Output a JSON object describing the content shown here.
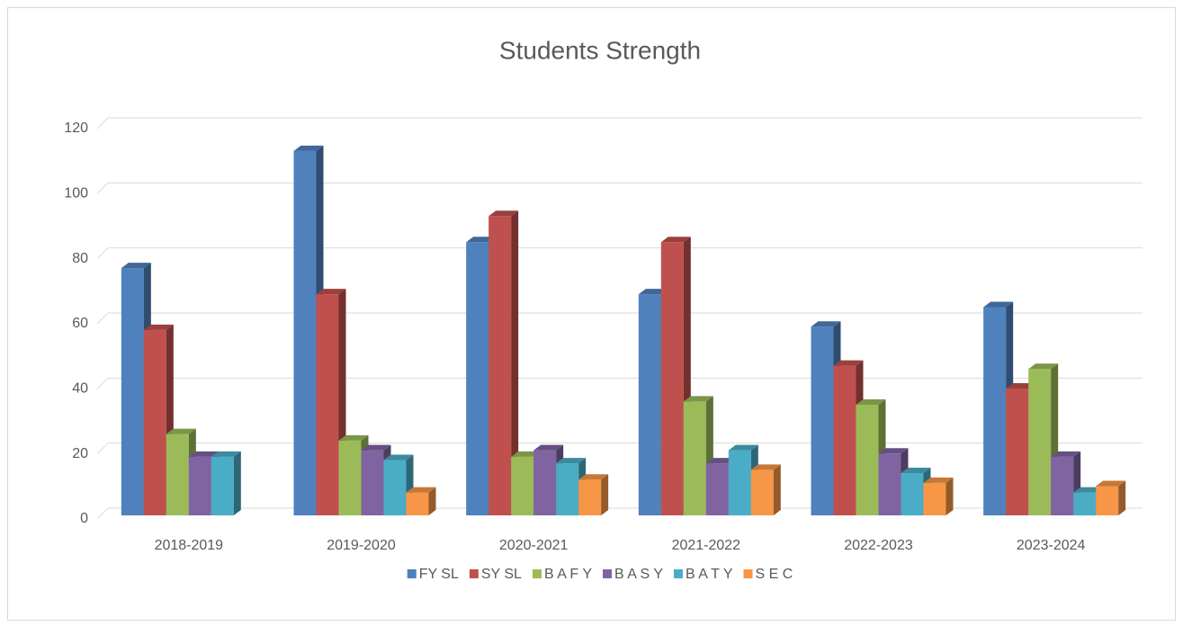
{
  "chart_data": {
    "type": "bar3d",
    "title": "Students  Strength",
    "categories": [
      "2018-2019",
      "2019-2020",
      "2020-2021",
      "2021-2022",
      "2022-2023",
      "2023-2024"
    ],
    "series": [
      {
        "name": "FY SL",
        "color": "#4f81bd",
        "values": [
          76,
          112,
          84,
          68,
          58,
          64
        ]
      },
      {
        "name": "SY SL",
        "color": "#c0504d",
        "values": [
          57,
          68,
          92,
          84,
          46,
          39
        ]
      },
      {
        "name": "B A F Y",
        "color": "#9bbb59",
        "values": [
          25,
          23,
          18,
          35,
          34,
          45
        ]
      },
      {
        "name": "B A S Y",
        "color": "#8064a2",
        "values": [
          18,
          20,
          20,
          16,
          19,
          18
        ]
      },
      {
        "name": "B A T Y",
        "color": "#4bacc6",
        "values": [
          18,
          17,
          16,
          20,
          13,
          7
        ]
      },
      {
        "name": "S E C",
        "color": "#f79646",
        "values": [
          null,
          7,
          11,
          14,
          10,
          9
        ]
      }
    ],
    "ylim": [
      0,
      120
    ],
    "yticks": [
      0,
      20,
      40,
      60,
      80,
      100,
      120
    ],
    "grid": true,
    "legend": "bottom"
  }
}
